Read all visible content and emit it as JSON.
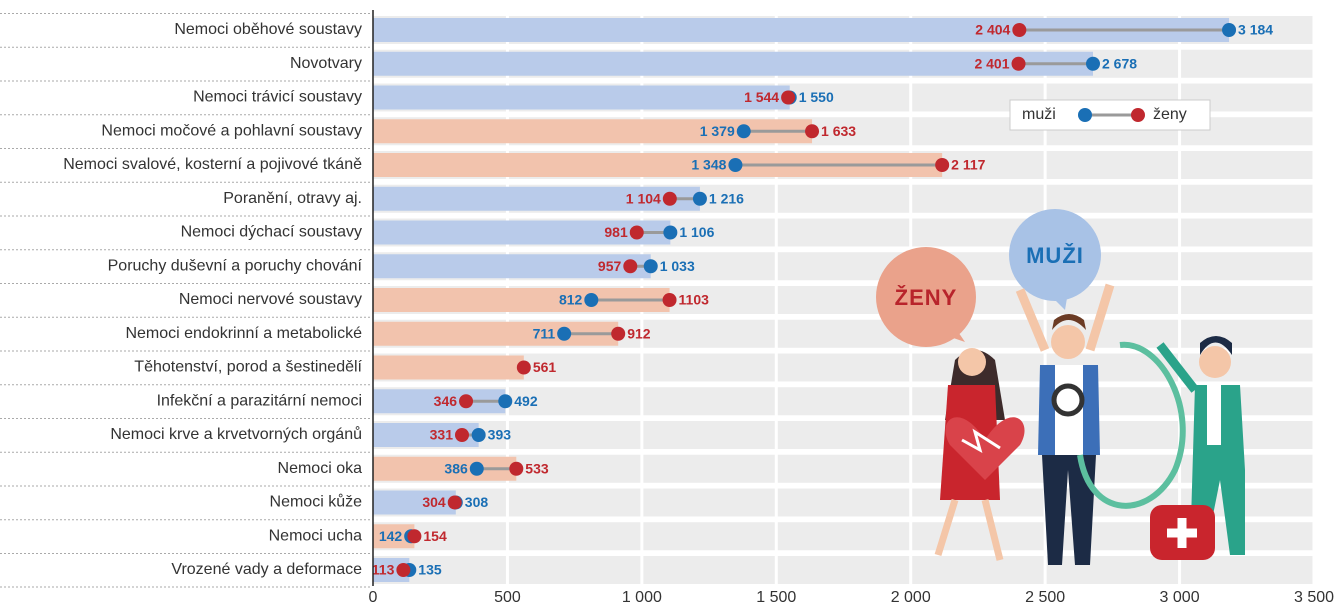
{
  "chart_data": {
    "type": "dumbbell",
    "categories": [
      "Nemoci oběhové soustavy",
      "Novotvary",
      "Nemoci trávicí soustavy",
      "Nemoci močové a pohlavní soustavy",
      "Nemoci svalové, kosterní a pojivové tkáně",
      "Poranění, otravy aj.",
      "Nemoci dýchací soustavy",
      "Poruchy duševní a poruchy chování",
      "Nemoci nervové soustavy",
      "Nemoci endokrinní a metabolické",
      "Těhotenství, porod a šestinedělí",
      "Infekční a parazitární nemoci",
      "Nemoci krve a krvetvorných orgánů",
      "Nemoci oka",
      "Nemoci kůže",
      "Nemoci ucha",
      "Vrozené vady a deformace"
    ],
    "series": [
      {
        "name": "muži",
        "color": "#1a6fb5",
        "bar_color": "#b9cbea",
        "values": [
          3184,
          2678,
          1550,
          1379,
          1348,
          1216,
          1106,
          1033,
          812,
          711,
          null,
          492,
          393,
          386,
          308,
          142,
          135
        ],
        "value_labels": [
          "3 184",
          "2 678",
          "1 550",
          "1 379",
          "1 348",
          "1 216",
          "1 106",
          "1 033",
          "812",
          "711",
          null,
          "492",
          "393",
          "386",
          "308",
          "142",
          "135"
        ]
      },
      {
        "name": "ženy",
        "color": "#c0282e",
        "bar_color": "#f2c3ad",
        "values": [
          2404,
          2401,
          1544,
          1633,
          2117,
          1104,
          981,
          957,
          1103,
          912,
          561,
          346,
          331,
          533,
          304,
          154,
          113
        ],
        "value_labels": [
          "2 404",
          "2 401",
          "1 544",
          "1 633",
          "2 117",
          "1 104",
          "981",
          "957",
          "1103",
          "912",
          "561",
          "346",
          "331",
          "533",
          "304",
          "154",
          "113"
        ]
      }
    ],
    "xlim": [
      0,
      3500
    ],
    "xticks": [
      0,
      500,
      {
        "value": 1000,
        "label": "1 000"
      },
      {
        "value": 1500,
        "label": "1 500"
      },
      {
        "value": 2000,
        "label": "2 000"
      },
      {
        "value": 2500,
        "label": "2 500"
      },
      {
        "value": 3000,
        "label": "3 000"
      },
      {
        "value": 3500,
        "label": "3 500"
      }
    ],
    "grid": true,
    "legend": "upper right"
  },
  "illustration": {
    "labels": [
      "ŽENY",
      "MUŽI"
    ]
  }
}
